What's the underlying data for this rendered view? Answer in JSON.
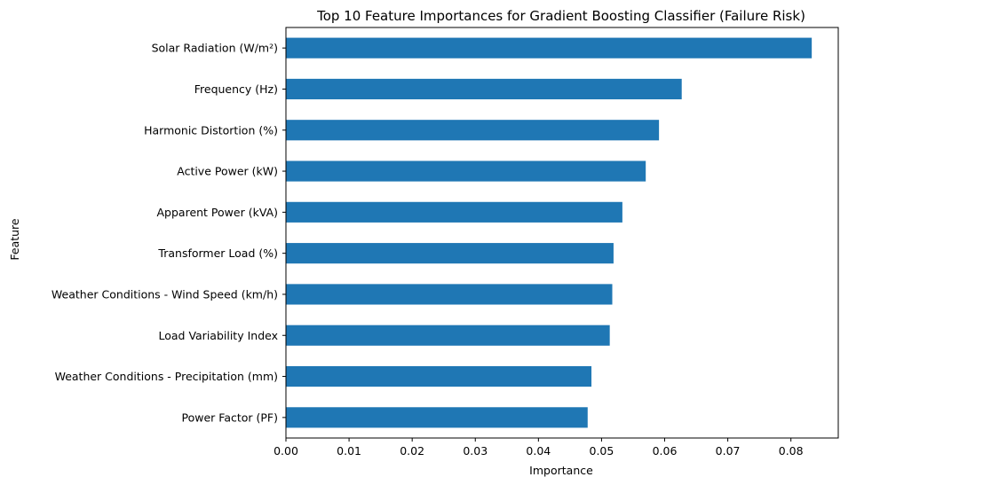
{
  "chart_data": {
    "type": "bar",
    "orientation": "horizontal",
    "title": "Top 10 Feature Importances for Gradient Boosting Classifier (Failure Risk)",
    "xlabel": "Importance",
    "ylabel": "Feature",
    "xlim": [
      0,
      0.0875
    ],
    "xticks": [
      "0.00",
      "0.01",
      "0.02",
      "0.03",
      "0.04",
      "0.05",
      "0.06",
      "0.07",
      "0.08"
    ],
    "grid": false,
    "bar_color": "#1f77b4",
    "categories": [
      "Solar Radiation (W/m²)",
      "Frequency (Hz)",
      "Harmonic Distortion (%)",
      "Active Power (kW)",
      "Apparent Power (kVA)",
      "Transformer Load (%)",
      "Weather Conditions - Wind Speed (km/h)",
      "Load Variability Index",
      "Weather Conditions - Precipitation (mm)",
      "Power Factor (PF)"
    ],
    "values": [
      0.0833,
      0.0627,
      0.0591,
      0.057,
      0.0533,
      0.0519,
      0.0517,
      0.0513,
      0.0484,
      0.0478
    ]
  }
}
